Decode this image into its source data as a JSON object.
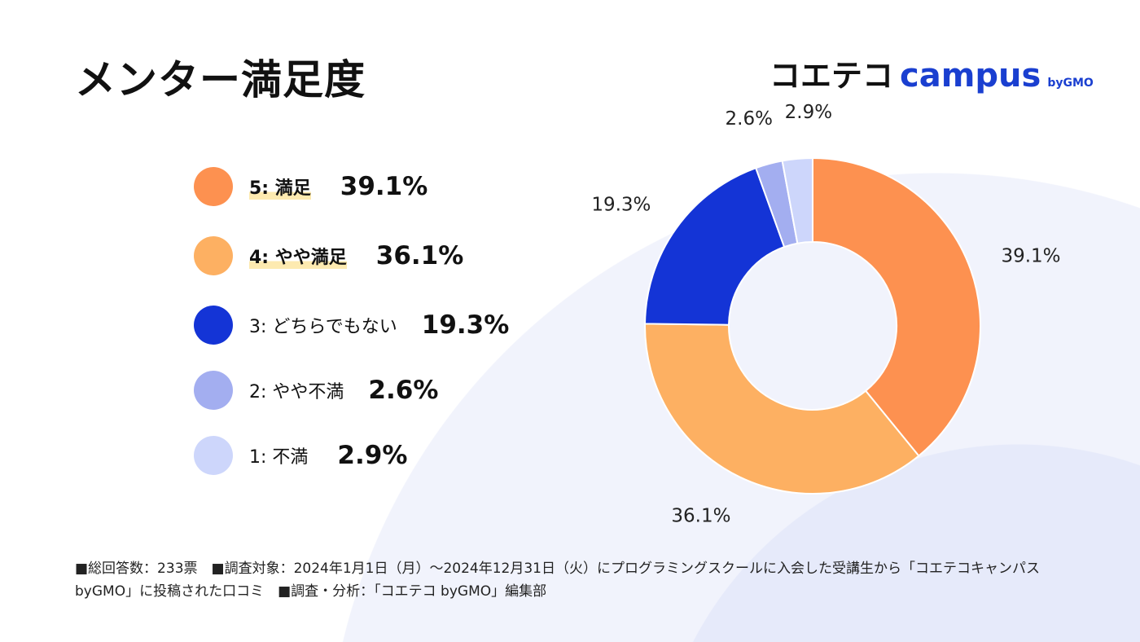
{
  "title": "メンター満足度",
  "logo": {
    "jp": "コエテコ",
    "en": "campus",
    "by": "byGMO"
  },
  "chart_data": {
    "type": "pie",
    "donut": true,
    "categories": [
      "5: 満足",
      "4: やや満足",
      "3: どちらでもない",
      "2: やや不満",
      "1: 不満"
    ],
    "values": [
      39.1,
      36.1,
      19.3,
      2.6,
      2.9
    ],
    "data_labels": [
      "39.1%",
      "36.1%",
      "19.3%",
      "2.6%",
      "2.9%"
    ],
    "colors": [
      "#fd9150",
      "#fdb062",
      "#1434d6",
      "#a3aef0",
      "#cdd6fb"
    ],
    "legend_placement": "left"
  },
  "footer": "■総回答数：233票　■調査対象：2024年1月1日（月）〜2024年12月31日（火）にプログラミングスクールに入会した受講生から「コエテコキャンパス byGMO」に投稿された口コミ　■調査・分析：「コエテコ byGMO」編集部"
}
